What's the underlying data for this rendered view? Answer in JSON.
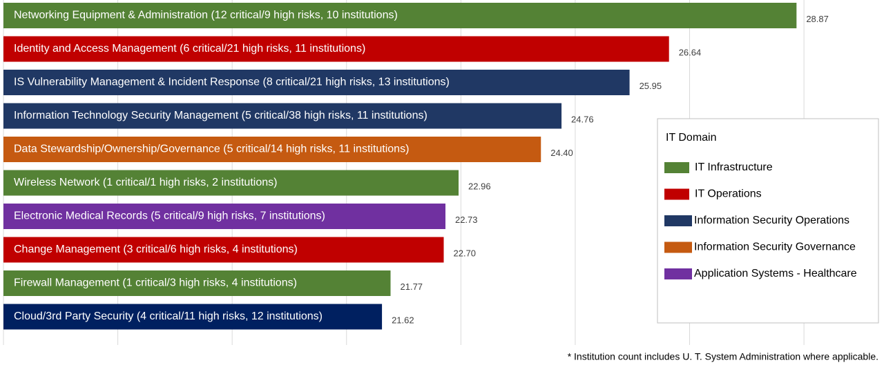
{
  "chart_data": {
    "type": "hbar",
    "categories": [
      "Networking Equipment & Administration (12 critical/9 high risks, 10 institutions)",
      "Identity and Access Management (6 critical/21 high risks, 11 institutions)",
      "IS Vulnerability Management & Incident Response (8 critical/21 high risks, 13 institutions)",
      "Information Technology Security Management (5 critical/38 high risks, 11 institutions)",
      "Data Stewardship/Ownership/Governance (5 critical/14 high risks, 11 institutions)",
      "Wireless Network (1 critical/1 high risks, 2 institutions)",
      "Electronic Medical Records (5 critical/9 high risks, 7 institutions)",
      "Change Management (3 critical/6 high risks, 4 institutions)",
      "Firewall Management (1 critical/3 high risks, 4 institutions)",
      "Cloud/3rd Party Security  (4 critical/11 high risks, 12 institutions)"
    ],
    "values": [
      28.87,
      26.64,
      25.95,
      24.76,
      24.4,
      22.96,
      22.73,
      22.7,
      21.77,
      21.62
    ],
    "value_labels": [
      "28.87",
      "26.64",
      "25.95",
      "24.76",
      "24.40",
      "22.96",
      "22.73",
      "22.70",
      "21.77",
      "21.62"
    ],
    "colors": [
      "#548235",
      "#c00000",
      "#203864",
      "#203864",
      "#c55a11",
      "#548235",
      "#7030a0",
      "#c00000",
      "#548235",
      "#002060"
    ],
    "xlim": [
      15,
      30.4
    ],
    "xticks": [
      15,
      17,
      19,
      21,
      23,
      25,
      27,
      29
    ],
    "grid": true,
    "legend": {
      "title": "IT Domain",
      "entries": [
        {
          "name": "IT Infrastructure",
          "color": "#548235"
        },
        {
          "name": "IT Operations",
          "color": "#c00000"
        },
        {
          "name": "Information Security Operations",
          "color": "#203864"
        },
        {
          "name": "Information Security Governance",
          "color": "#c55a11"
        },
        {
          "name": "Application Systems - Healthcare",
          "color": "#7030a0"
        }
      ]
    },
    "footnote": "* Institution count includes U. T. System Administration where applicable."
  }
}
